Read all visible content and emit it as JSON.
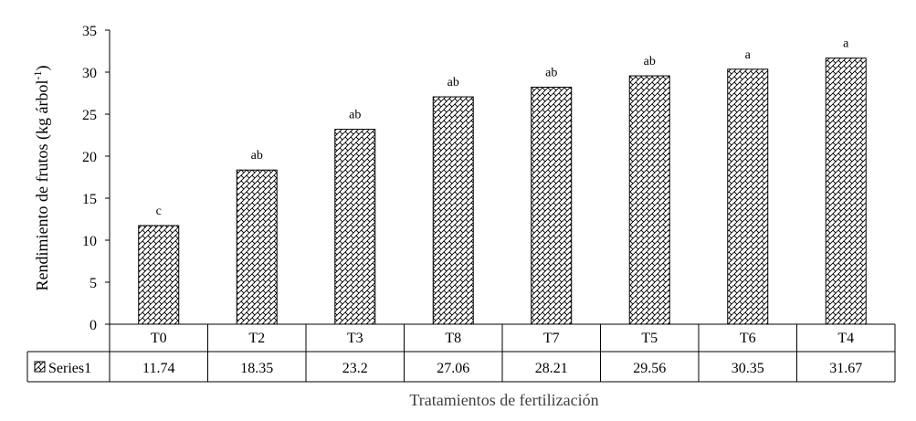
{
  "chart_data": {
    "type": "bar",
    "categories": [
      "T0",
      "T2",
      "T3",
      "T8",
      "T7",
      "T5",
      "T6",
      "T4"
    ],
    "series": [
      {
        "name": "Series1",
        "values": [
          11.74,
          18.35,
          23.2,
          27.06,
          28.21,
          29.56,
          30.35,
          31.67
        ]
      }
    ],
    "value_labels": [
      "11.74",
      "18.35",
      "23.2",
      "27.06",
      "28.21",
      "29.56",
      "30.35",
      "31.67"
    ],
    "significance_letters": [
      "c",
      "ab",
      "ab",
      "ab",
      "ab",
      "ab",
      "a",
      "a"
    ],
    "y_ticks": [
      "0",
      "5",
      "10",
      "15",
      "20",
      "25",
      "30",
      "35"
    ],
    "ylim": [
      0,
      35
    ],
    "ylabel": "Rendimiento de frutos (kg árbol",
    "ylabel_superscript": "-1",
    "ylabel_suffix": ")",
    "xlabel": "Tratamientos de fertilización",
    "grid": false,
    "legend": "data-table-bottom",
    "bar_fill": "crosshatch",
    "colors": {
      "axis": "#000000",
      "bar_stroke": "#000000",
      "bar_pattern": "#000000",
      "background": "#ffffff"
    }
  }
}
